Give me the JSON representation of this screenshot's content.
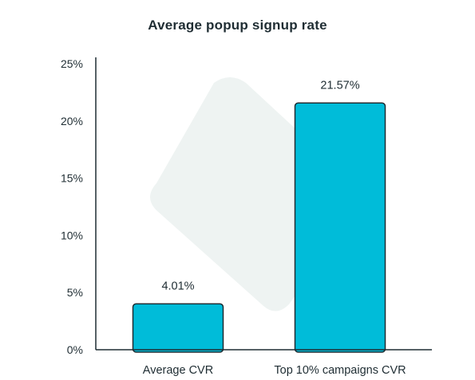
{
  "chart_data": {
    "type": "bar",
    "title": "Average popup signup rate",
    "xlabel": "",
    "ylabel": "",
    "categories": [
      "Average CVR",
      "Top 10% campaigns CVR"
    ],
    "values": [
      4.01,
      21.57
    ],
    "data_labels": [
      "4.01%",
      "21.57%"
    ],
    "ylim": [
      0,
      25
    ],
    "yticks": [
      0,
      5,
      10,
      15,
      20,
      25
    ],
    "ytick_labels": [
      "0%",
      "5%",
      "10%",
      "15%",
      "20%",
      "25%"
    ],
    "grid": false,
    "legend": "none"
  },
  "colors": {
    "bar_fill": "#00bcd9",
    "bar_stroke": "#1f2d33",
    "axis": "#1f2d33",
    "text": "#1f2d33",
    "background_shape": "#eef3f2"
  }
}
